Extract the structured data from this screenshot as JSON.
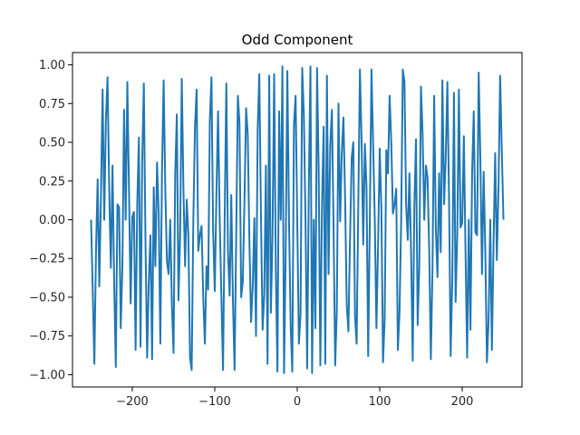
{
  "chart_data": {
    "type": "line",
    "title": "Odd Component",
    "xlabel": "",
    "ylabel": "",
    "xlim": [
      -272.5,
      272.5
    ],
    "ylim": [
      -1.0793,
      1.0793
    ],
    "grid": false,
    "xticks": [
      -200,
      -100,
      0,
      100,
      200
    ],
    "xtick_labels": [
      "−200",
      "−100",
      "0",
      "100",
      "200"
    ],
    "yticks": [
      -1.0,
      -0.75,
      -0.5,
      -0.25,
      0.0,
      0.25,
      0.5,
      0.75,
      1.0
    ],
    "ytick_labels": [
      "−1.00",
      "−0.75",
      "−0.50",
      "−0.25",
      "0.00",
      "0.25",
      "0.50",
      "0.75",
      "1.00"
    ],
    "series": [
      {
        "color": "#1f77b4",
        "x": [
          -250,
          -248,
          -246,
          -244,
          -242,
          -240,
          -238,
          -236,
          -234,
          -232,
          -230,
          -228,
          -226,
          -224,
          -222,
          -220,
          -218,
          -216,
          -214,
          -212,
          -210,
          -208,
          -206,
          -204,
          -202,
          -200,
          -198,
          -196,
          -194,
          -192,
          -190,
          -188,
          -186,
          -184,
          -182,
          -180,
          -178,
          -176,
          -174,
          -172,
          -170,
          -168,
          -166,
          -164,
          -162,
          -160,
          -158,
          -156,
          -154,
          -152,
          -150,
          -148,
          -146,
          -144,
          -142,
          -140,
          -138,
          -136,
          -134,
          -132,
          -130,
          -128,
          -126,
          -124,
          -122,
          -120,
          -118,
          -116,
          -114,
          -112,
          -110,
          -108,
          -106,
          -104,
          -102,
          -100,
          -98,
          -96,
          -94,
          -92,
          -90,
          -88,
          -86,
          -84,
          -82,
          -80,
          -78,
          -76,
          -74,
          -72,
          -70,
          -68,
          -66,
          -64,
          -62,
          -60,
          -58,
          -56,
          -54,
          -52,
          -50,
          -48,
          -46,
          -44,
          -42,
          -40,
          -38,
          -36,
          -34,
          -32,
          -30,
          -28,
          -26,
          -24,
          -22,
          -20,
          -18,
          -16,
          -14,
          -12,
          -10,
          -8,
          -6,
          -4,
          -2,
          0,
          2,
          4,
          6,
          8,
          10,
          12,
          14,
          16,
          18,
          20,
          22,
          24,
          26,
          28,
          30,
          32,
          34,
          36,
          38,
          40,
          42,
          44,
          46,
          48,
          50,
          52,
          54,
          56,
          58,
          60,
          62,
          64,
          66,
          68,
          70,
          72,
          74,
          76,
          78,
          80,
          82,
          84,
          86,
          88,
          90,
          92,
          94,
          96,
          98,
          100,
          102,
          104,
          106,
          108,
          110,
          112,
          114,
          116,
          118,
          120,
          122,
          124,
          126,
          128,
          130,
          132,
          134,
          136,
          138,
          140,
          142,
          144,
          146,
          148,
          150,
          152,
          154,
          156,
          158,
          160,
          162,
          164,
          166,
          168,
          170,
          172,
          174,
          176,
          178,
          180,
          182,
          184,
          186,
          188,
          190,
          192,
          194,
          196,
          198,
          200,
          202,
          204,
          206,
          208,
          210,
          212,
          214,
          216,
          218,
          220,
          222,
          224,
          226,
          228,
          230,
          232,
          234,
          236,
          238,
          240,
          242,
          244,
          246,
          248,
          250
        ],
        "y": [
          0.0,
          -0.45,
          -0.93,
          -0.2,
          0.26,
          -0.43,
          0.15,
          0.84,
          0.0,
          0.65,
          0.92,
          0.2,
          -0.31,
          0.35,
          -0.4,
          -0.95,
          0.1,
          0.08,
          -0.7,
          -0.3,
          0.71,
          0.0,
          0.89,
          0.2,
          -0.54,
          0.02,
          0.05,
          -0.84,
          0.1,
          0.53,
          -0.82,
          0.38,
          0.88,
          -0.15,
          -0.89,
          -0.4,
          -0.1,
          -0.9,
          0.21,
          -0.3,
          0.37,
          0.05,
          -0.8,
          0.3,
          0.9,
          0.2,
          -0.27,
          -0.35,
          0.0,
          -0.55,
          -0.86,
          0.29,
          0.68,
          -0.52,
          -0.09,
          0.91,
          0.2,
          -0.3,
          0.13,
          -0.1,
          -0.89,
          -0.97,
          0.0,
          0.6,
          0.84,
          -0.2,
          -0.1,
          -0.04,
          -0.5,
          -0.8,
          -0.3,
          -0.45,
          0.64,
          0.92,
          -0.07,
          -0.46,
          0.16,
          0.7,
          0.0,
          -0.49,
          -0.97,
          0.0,
          0.88,
          -0.2,
          -0.49,
          0.16,
          -0.51,
          -0.97,
          -0.1,
          0.8,
          0.62,
          -0.5,
          -0.4,
          0.12,
          0.72,
          0.55,
          -0.14,
          -0.66,
          -0.43,
          0.01,
          -0.75,
          0.58,
          0.94,
          0.03,
          -0.71,
          -0.48,
          0.35,
          -0.93,
          0.93,
          -0.6,
          -0.1,
          0.94,
          -0.32,
          -0.98,
          0.7,
          0.0,
          0.99,
          -0.99,
          -0.2,
          0.96,
          0.0,
          -0.68,
          -0.98,
          0.61,
          0.8,
          0.0,
          -0.8,
          -0.61,
          0.98,
          0.68,
          0.0,
          -0.96,
          0.2,
          0.99,
          -0.99,
          0.0,
          -0.7,
          0.98,
          0.32,
          -0.94,
          0.1,
          0.6,
          -0.93,
          0.93,
          -0.35,
          0.48,
          0.71,
          -0.03,
          -0.94,
          -0.58,
          0.75,
          -0.01,
          0.43,
          0.66,
          0.14,
          -0.55,
          -0.72,
          -0.12,
          0.4,
          0.5,
          -0.62,
          -0.8,
          0.1,
          0.97,
          0.51,
          -0.16,
          0.49,
          0.2,
          -0.88,
          0.0,
          0.97,
          0.49,
          0.0,
          -0.7,
          -0.16,
          0.46,
          0.07,
          -0.92,
          -0.64,
          0.45,
          0.3,
          0.8,
          0.5,
          0.04,
          0.1,
          0.2,
          -0.84,
          -0.6,
          0.0,
          0.97,
          0.89,
          0.1,
          -0.13,
          0.3,
          -0.2,
          -0.91,
          0.09,
          0.52,
          -0.68,
          -0.29,
          0.86,
          0.55,
          0.0,
          0.35,
          0.27,
          -0.2,
          -0.9,
          -0.3,
          0.8,
          -0.05,
          -0.37,
          0.3,
          -0.21,
          0.9,
          0.1,
          0.4,
          0.89,
          0.15,
          -0.88,
          -0.38,
          0.82,
          -0.53,
          -0.1,
          0.84,
          -0.05,
          -0.02,
          0.54,
          -0.2,
          -0.89,
          0.0,
          -0.71,
          0.3,
          0.7,
          -0.08,
          -0.1,
          0.95,
          0.4,
          -0.35,
          0.31,
          -0.2,
          -0.92,
          -0.65,
          0.0,
          -0.84,
          -0.15,
          0.43,
          -0.26,
          0.2,
          0.93,
          0.45,
          0.0
        ]
      }
    ]
  }
}
